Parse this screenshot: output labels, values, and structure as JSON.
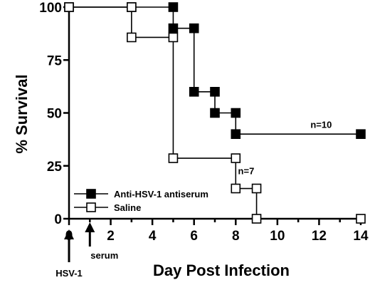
{
  "chart_data": {
    "type": "line",
    "subtype": "step-survival",
    "ylabel": "% Survival",
    "xlabel": "Day Post Infection",
    "xlim": [
      0,
      14
    ],
    "ylim": [
      0,
      100
    ],
    "xticks": [
      0,
      2,
      4,
      6,
      8,
      10,
      12,
      14
    ],
    "yticks": [
      0,
      25,
      50,
      75,
      100
    ],
    "grid": false,
    "legend_position": "bottom-left",
    "series": [
      {
        "name": "Anti-HSV-1 antiserum",
        "marker": "filled-square",
        "color": "#000000",
        "x": [
          0,
          3,
          5,
          5,
          6,
          6,
          7,
          7,
          8,
          8,
          14
        ],
        "y": [
          100,
          100,
          100,
          90,
          90,
          60,
          60,
          50,
          50,
          40,
          40
        ]
      },
      {
        "name": "Saline",
        "marker": "open-square",
        "color": "#000000",
        "x": [
          0,
          3,
          3,
          5,
          5,
          8,
          8,
          9,
          9,
          14
        ],
        "y": [
          100,
          100,
          85.7,
          85.7,
          28.6,
          28.6,
          14.3,
          14.3,
          0,
          0
        ]
      }
    ],
    "annotations": [
      {
        "text": "n=10",
        "x": 12.1,
        "y": 43
      },
      {
        "text": "n=7",
        "x": 8.5,
        "y": 21
      },
      {
        "text": "HSV-1",
        "arrow_at_x": 0
      },
      {
        "text": "serum",
        "arrow_at_x": 1
      }
    ]
  }
}
